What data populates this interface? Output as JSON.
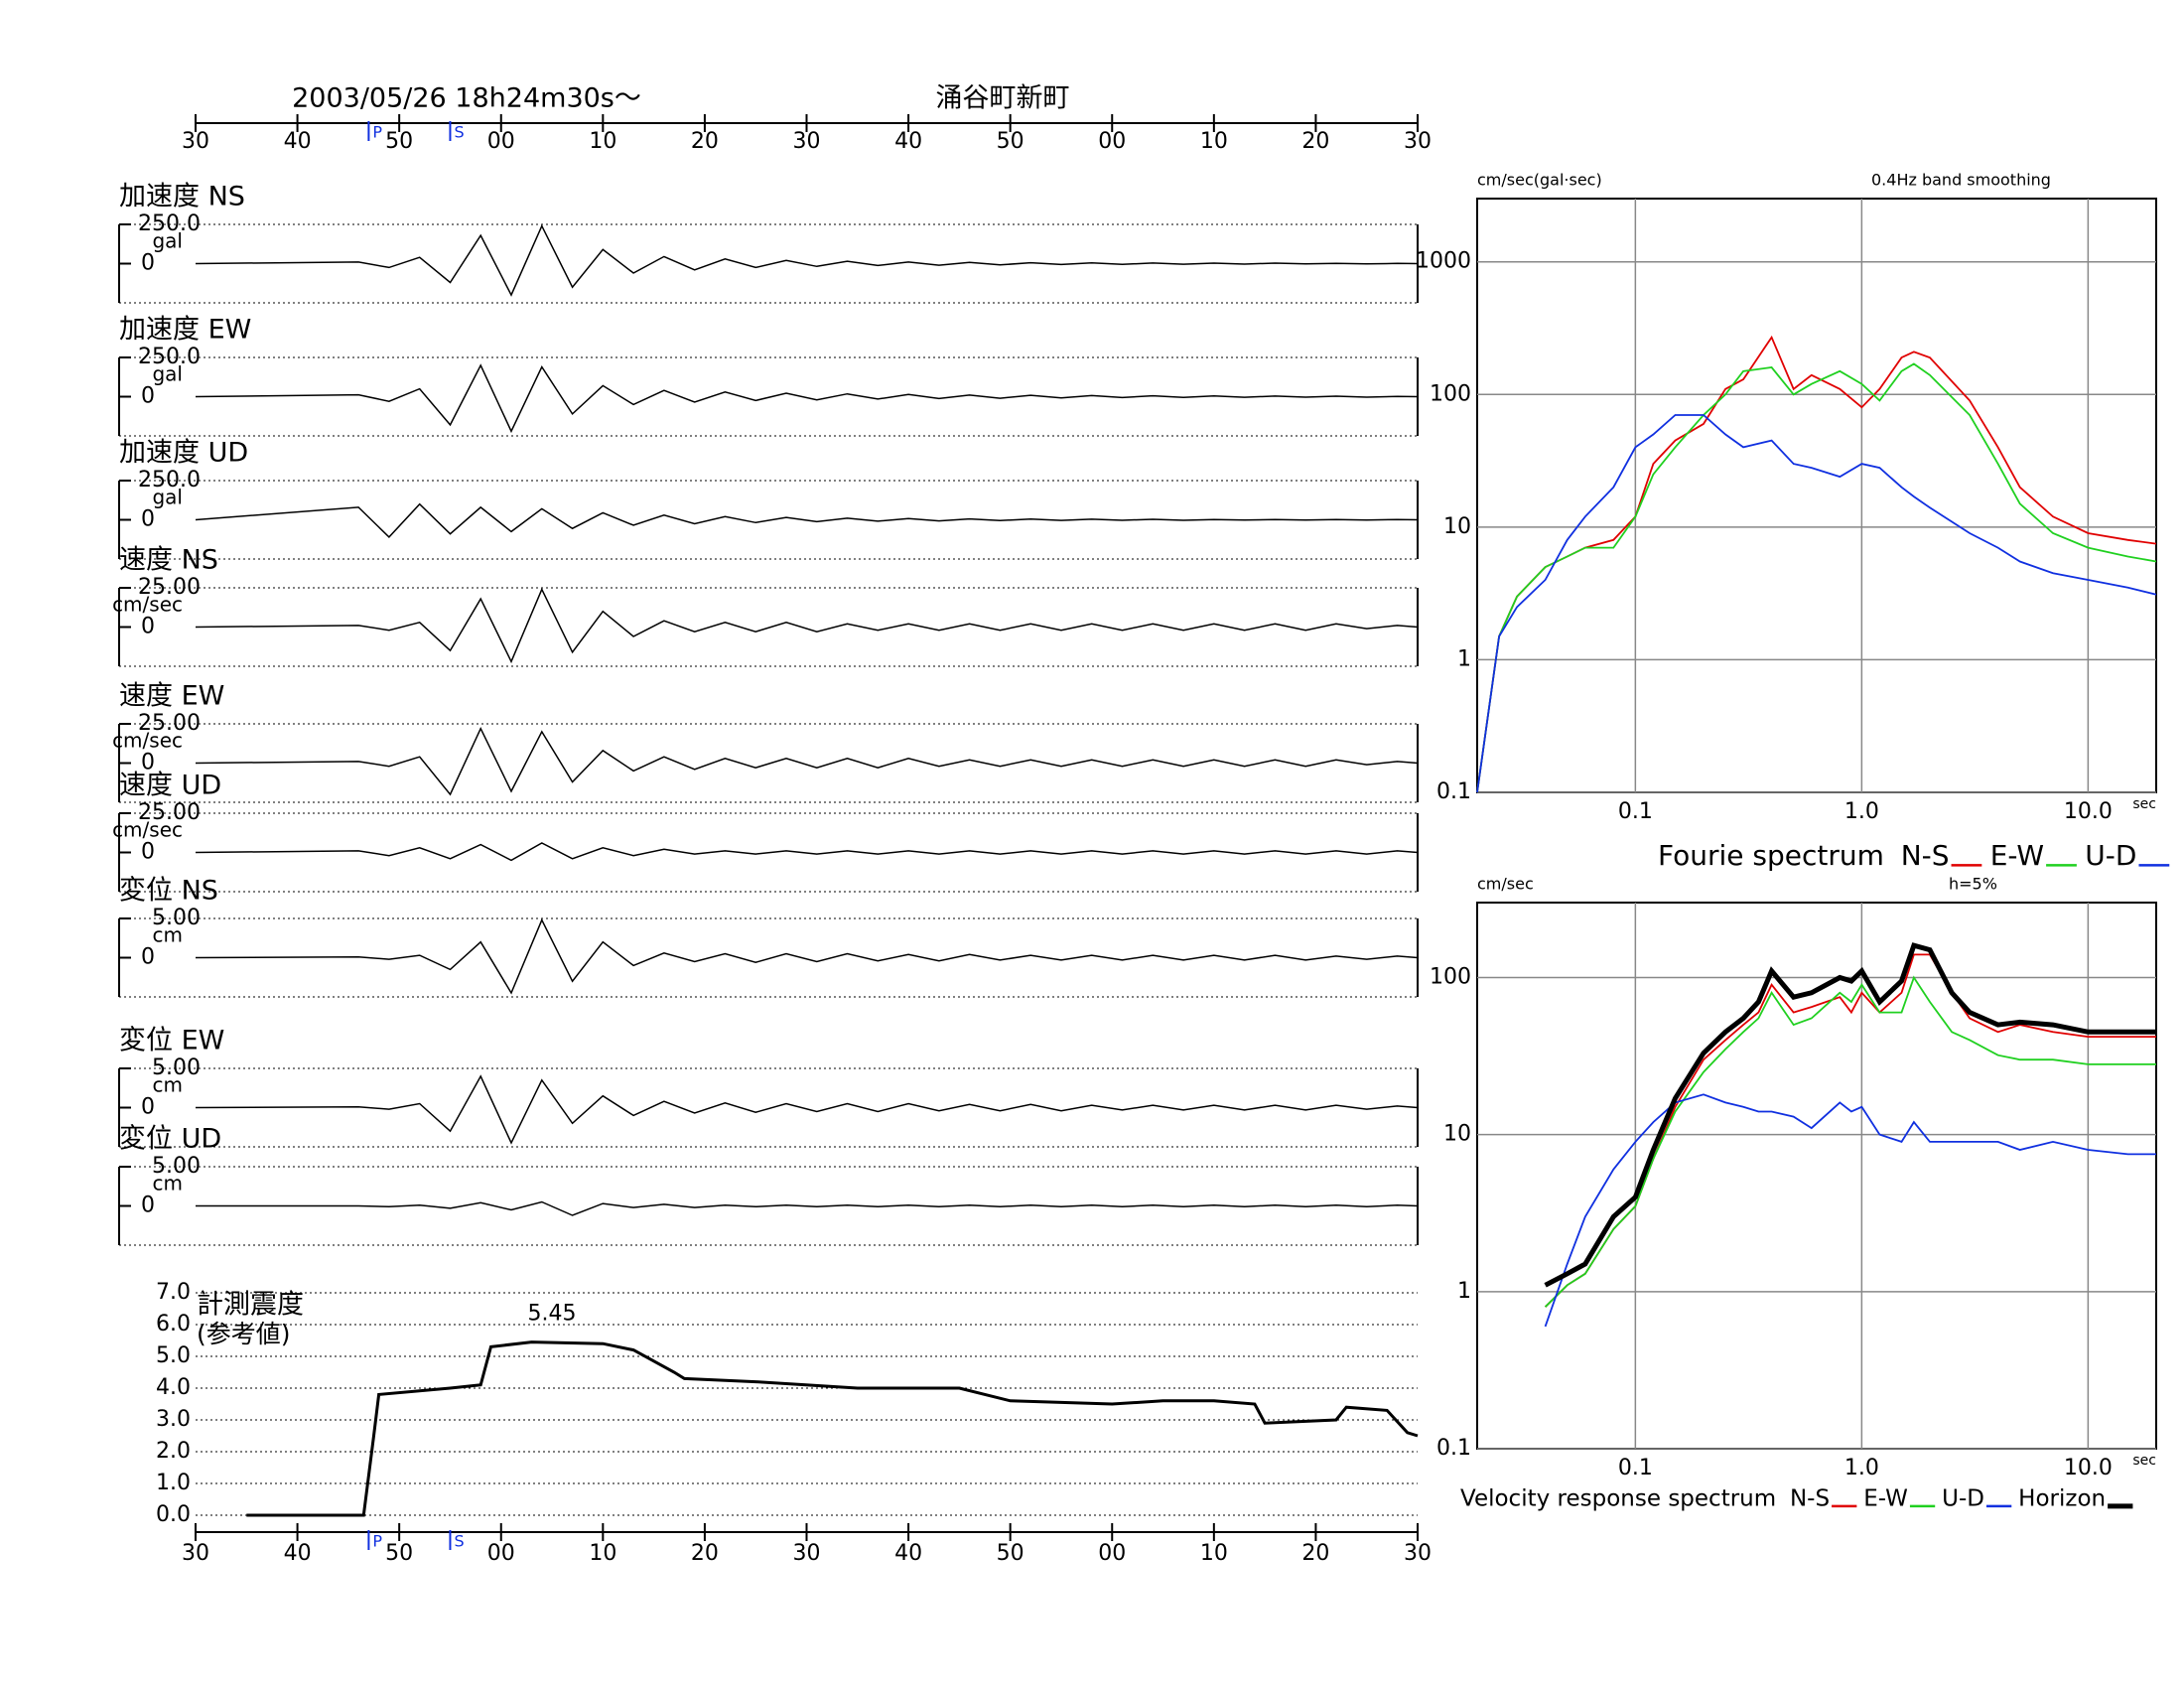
{
  "chart_data": [
    {
      "type": "waveform",
      "title": "2003/05/26  18h24m30s～",
      "subtitle": "涌谷町新町",
      "xlim": [
        0,
        120
      ],
      "xticks": [
        {
          "value": 0,
          "label": "30"
        },
        {
          "value": 10,
          "label": "40"
        },
        {
          "value": 20,
          "label": "50"
        },
        {
          "value": 30,
          "label": "00"
        },
        {
          "value": 40,
          "label": "10"
        },
        {
          "value": 50,
          "label": "20"
        },
        {
          "value": 60,
          "label": "30"
        },
        {
          "value": 70,
          "label": "40"
        },
        {
          "value": 80,
          "label": "50"
        },
        {
          "value": 90,
          "label": "00"
        },
        {
          "value": 100,
          "label": "10"
        },
        {
          "value": 110,
          "label": "20"
        },
        {
          "value": 120,
          "label": "30"
        }
      ],
      "markers": [
        {
          "label": "P",
          "x": 17
        },
        {
          "label": "S",
          "x": 25
        }
      ],
      "x": [
        0,
        16,
        19,
        22,
        25,
        28,
        31,
        34,
        37,
        40,
        43,
        46,
        49,
        52,
        55,
        58,
        61,
        64,
        67,
        70,
        73,
        76,
        79,
        82,
        85,
        88,
        91,
        94,
        97,
        100,
        103,
        106,
        109,
        112,
        115,
        118,
        120
      ],
      "series": [
        {
          "name": "加速度 NS",
          "unit": "gal",
          "color": "#000000",
          "ylim": [
            -250,
            250
          ],
          "yticks": [
            {
              "value": 250,
              "label": "250.0"
            },
            0
          ],
          "values": [
            0,
            10,
            -25,
            40,
            -120,
            180,
            -200,
            240,
            -150,
            90,
            -60,
            45,
            -40,
            30,
            -25,
            20,
            -18,
            15,
            -12,
            10,
            -10,
            8,
            -8,
            6,
            -6,
            5,
            -5,
            4,
            -4,
            3,
            -3,
            3,
            -2,
            2,
            -2,
            1,
            0
          ]
        },
        {
          "name": "加速度 EW",
          "unit": "gal",
          "color": "#000000",
          "ylim": [
            -250,
            250
          ],
          "yticks": [
            {
              "value": 250,
              "label": "250.0"
            },
            0
          ],
          "values": [
            0,
            12,
            -30,
            50,
            -180,
            200,
            -220,
            190,
            -110,
            70,
            -50,
            40,
            -35,
            30,
            -25,
            22,
            -20,
            18,
            -15,
            14,
            -12,
            10,
            -10,
            9,
            -8,
            7,
            -6,
            6,
            -5,
            5,
            -4,
            4,
            -3,
            3,
            -3,
            2,
            0
          ]
        },
        {
          "name": "加速度 UD",
          "unit": "gal",
          "color": "#000000",
          "ylim": [
            -250,
            250
          ],
          "yticks": [
            {
              "value": 250,
              "label": "250.0"
            },
            0
          ],
          "values": [
            0,
            80,
            -110,
            100,
            -90,
            80,
            -75,
            70,
            -55,
            45,
            -35,
            30,
            -25,
            20,
            -18,
            15,
            -12,
            10,
            -9,
            8,
            -7,
            6,
            -5,
            5,
            -4,
            4,
            -3,
            3,
            -3,
            2,
            -2,
            2,
            -1,
            1,
            -1,
            1,
            0
          ]
        },
        {
          "name": "速度 NS",
          "unit": "cm/sec",
          "color": "#000000",
          "ylim": [
            -25,
            25
          ],
          "yticks": [
            {
              "value": 25,
              "label": "25.00"
            },
            0
          ],
          "values": [
            0,
            1,
            -2,
            3,
            -15,
            18,
            -22,
            24,
            -16,
            10,
            -6,
            4,
            -3,
            3,
            -3,
            3,
            -3,
            2,
            -2,
            2,
            -2,
            2,
            -2,
            2,
            -2,
            2,
            -2,
            2,
            -2,
            2,
            -2,
            2,
            -2,
            2,
            -1,
            1,
            0
          ]
        },
        {
          "name": "速度 EW",
          "unit": "cm/sec",
          "color": "#000000",
          "ylim": [
            -25,
            25
          ],
          "yticks": [
            {
              "value": 25,
              "label": "25.00"
            },
            0
          ],
          "values": [
            0,
            1,
            -2,
            4,
            -20,
            22,
            -18,
            20,
            -12,
            8,
            -5,
            4,
            -4,
            3,
            -3,
            3,
            -3,
            3,
            -3,
            3,
            -2,
            2,
            -2,
            2,
            -2,
            2,
            -2,
            2,
            -2,
            2,
            -2,
            2,
            -2,
            2,
            -1,
            1,
            0
          ]
        },
        {
          "name": "速度 UD",
          "unit": "cm/sec",
          "color": "#000000",
          "ylim": [
            -25,
            25
          ],
          "yticks": [
            {
              "value": 25,
              "label": "25.00"
            },
            0
          ],
          "values": [
            0,
            1,
            -2,
            3,
            -4,
            5,
            -5,
            6,
            -4,
            3,
            -2,
            2,
            -1,
            1,
            -1,
            1,
            -1,
            1,
            -1,
            1,
            -1,
            1,
            -1,
            1,
            -1,
            1,
            -1,
            1,
            -1,
            1,
            -1,
            1,
            -1,
            1,
            -1,
            1,
            0
          ]
        },
        {
          "name": "変位 NS",
          "unit": "cm",
          "color": "#000000",
          "ylim": [
            -5,
            5
          ],
          "yticks": [
            {
              "value": 5,
              "label": "5.00"
            },
            0
          ],
          "values": [
            0,
            0.1,
            -0.2,
            0.3,
            -1.5,
            2,
            -4.5,
            4.8,
            -3,
            2,
            -1,
            0.6,
            -0.5,
            0.5,
            -0.6,
            0.5,
            -0.5,
            0.5,
            -0.4,
            0.4,
            -0.4,
            0.4,
            -0.3,
            0.3,
            -0.3,
            0.3,
            -0.3,
            0.3,
            -0.3,
            0.3,
            -0.3,
            0.3,
            -0.3,
            0.2,
            -0.2,
            0.2,
            0
          ]
        },
        {
          "name": "変位 EW",
          "unit": "cm",
          "color": "#000000",
          "ylim": [
            -5,
            5
          ],
          "yticks": [
            {
              "value": 5,
              "label": "5.00"
            },
            0
          ],
          "values": [
            0,
            0.1,
            -0.2,
            0.5,
            -3,
            4,
            -4.5,
            3.5,
            -2,
            1.5,
            -1,
            0.8,
            -0.7,
            0.6,
            -0.6,
            0.5,
            -0.5,
            0.5,
            -0.5,
            0.5,
            -0.4,
            0.4,
            -0.4,
            0.4,
            -0.4,
            0.3,
            -0.3,
            0.3,
            -0.3,
            0.3,
            -0.3,
            0.3,
            -0.3,
            0.3,
            -0.2,
            0.2,
            0
          ]
        },
        {
          "name": "変位 UD",
          "unit": "cm",
          "color": "#000000",
          "ylim": [
            -5,
            5
          ],
          "yticks": [
            {
              "value": 5,
              "label": "5.00"
            },
            0
          ],
          "values": [
            0,
            0,
            -0.1,
            0.1,
            -0.3,
            0.4,
            -0.5,
            0.5,
            -1.2,
            0.3,
            -0.2,
            0.2,
            -0.2,
            0.1,
            -0.1,
            0.1,
            -0.1,
            0.1,
            -0.1,
            0.1,
            -0.1,
            0.1,
            -0.1,
            0.1,
            -0.1,
            0.1,
            -0.1,
            0.1,
            -0.1,
            0.1,
            -0.1,
            0.1,
            -0.1,
            0.1,
            -0.1,
            0.1,
            0
          ]
        }
      ]
    },
    {
      "type": "line",
      "title": "計測震度",
      "subtitle": "(参考値)",
      "xlim": [
        0,
        120
      ],
      "xticks": [
        {
          "value": 0,
          "label": "30"
        },
        {
          "value": 10,
          "label": "40"
        },
        {
          "value": 20,
          "label": "50"
        },
        {
          "value": 30,
          "label": "00"
        },
        {
          "value": 40,
          "label": "10"
        },
        {
          "value": 50,
          "label": "20"
        },
        {
          "value": 60,
          "label": "30"
        },
        {
          "value": 70,
          "label": "40"
        },
        {
          "value": 80,
          "label": "50"
        },
        {
          "value": 90,
          "label": "00"
        },
        {
          "value": 100,
          "label": "10"
        },
        {
          "value": 110,
          "label": "20"
        },
        {
          "value": 120,
          "label": "30"
        }
      ],
      "markers": [
        {
          "label": "P",
          "x": 17
        },
        {
          "label": "S",
          "x": 25
        }
      ],
      "ylim": [
        0,
        7
      ],
      "yticks": [
        {
          "value": 0,
          "label": "0.0"
        },
        {
          "value": 1,
          "label": "1.0"
        },
        {
          "value": 2,
          "label": "2.0"
        },
        {
          "value": 3,
          "label": "3.0"
        },
        {
          "value": 4,
          "label": "4.0"
        },
        {
          "value": 5,
          "label": "5.0"
        },
        {
          "value": 6,
          "label": "6.0"
        },
        {
          "value": 7,
          "label": "7.0"
        }
      ],
      "grid": true,
      "x": [
        5,
        16.5,
        17.5,
        18,
        25,
        28,
        29,
        33,
        40,
        43,
        47,
        48,
        55,
        65,
        75,
        80,
        90,
        95,
        100,
        104,
        105,
        112,
        113,
        117,
        119,
        120
      ],
      "series": [
        {
          "color": "#000000",
          "values": [
            0,
            0,
            2.5,
            3.8,
            4.0,
            4.1,
            5.3,
            5.45,
            5.4,
            5.2,
            4.5,
            4.3,
            4.2,
            4.0,
            4.0,
            3.6,
            3.5,
            3.6,
            3.6,
            3.5,
            2.9,
            3.0,
            3.4,
            3.3,
            2.6,
            2.5
          ]
        }
      ],
      "annotations": [
        {
          "x": 35,
          "value": 5.45
        }
      ]
    },
    {
      "type": "line",
      "log_x": true,
      "log_y": true,
      "grid": true,
      "unit_label": "cm/sec(gal·sec)",
      "note": "0.4Hz band smoothing",
      "x_unit": "sec",
      "legend_title": "Fourie spectrum",
      "xlim": [
        0.02,
        20
      ],
      "xticks": [
        0.1,
        {
          "value": 1,
          "label": "1.0"
        },
        {
          "value": 10,
          "label": "10.0"
        }
      ],
      "ylim": [
        0.1,
        3000
      ],
      "yticks": [
        0.1,
        1,
        10,
        100,
        1000
      ],
      "x": [
        0.02,
        0.025,
        0.03,
        0.04,
        0.05,
        0.06,
        0.08,
        0.1,
        0.12,
        0.15,
        0.2,
        0.25,
        0.3,
        0.4,
        0.5,
        0.6,
        0.8,
        1.0,
        1.2,
        1.5,
        1.7,
        2,
        3,
        4,
        5,
        7,
        10,
        15,
        20
      ],
      "series": [
        {
          "name": "N-S",
          "color": "#e00000",
          "values": [
            0.1,
            1.5,
            3,
            5,
            6,
            7,
            8,
            12,
            30,
            45,
            60,
            110,
            130,
            270,
            110,
            140,
            110,
            80,
            110,
            190,
            210,
            190,
            90,
            40,
            20,
            12,
            9,
            8,
            7.5
          ]
        },
        {
          "name": "E-W",
          "color": "#20d020",
          "values": [
            0.1,
            1.5,
            3,
            5,
            6,
            7,
            7,
            12,
            25,
            40,
            70,
            100,
            150,
            160,
            100,
            120,
            150,
            120,
            90,
            150,
            170,
            140,
            70,
            30,
            15,
            9,
            7,
            6,
            5.5
          ]
        },
        {
          "name": "U-D",
          "color": "#1030e0",
          "values": [
            0.1,
            1.5,
            2.5,
            4,
            8,
            12,
            20,
            40,
            50,
            70,
            70,
            50,
            40,
            45,
            30,
            28,
            24,
            30,
            28,
            20,
            17,
            14,
            9,
            7,
            5.5,
            4.5,
            4,
            3.5,
            3.1
          ]
        }
      ]
    },
    {
      "type": "line",
      "log_x": true,
      "log_y": true,
      "grid": true,
      "unit_label": "cm/sec",
      "note": "h=5%",
      "x_unit": "sec",
      "legend_title": "Velocity response spectrum",
      "xlim": [
        0.02,
        20
      ],
      "xticks": [
        0.1,
        {
          "value": 1,
          "label": "1.0"
        },
        {
          "value": 10,
          "label": "10.0"
        }
      ],
      "ylim": [
        0.1,
        300
      ],
      "yticks": [
        0.1,
        1,
        10,
        100
      ],
      "x": [
        0.04,
        0.05,
        0.06,
        0.08,
        0.1,
        0.12,
        0.15,
        0.2,
        0.25,
        0.3,
        0.35,
        0.4,
        0.5,
        0.6,
        0.8,
        0.9,
        1.0,
        1.2,
        1.5,
        1.7,
        2,
        2.5,
        3,
        4,
        5,
        7,
        10,
        15,
        20
      ],
      "series": [
        {
          "name": "N-S",
          "color": "#e00000",
          "values": [
            0.8,
            1.1,
            1.3,
            2.5,
            3.5,
            7,
            15,
            30,
            40,
            50,
            60,
            90,
            60,
            65,
            75,
            60,
            80,
            60,
            80,
            140,
            140,
            80,
            55,
            45,
            50,
            45,
            42,
            42,
            42
          ]
        },
        {
          "name": "E-W",
          "color": "#20d020",
          "values": [
            0.8,
            1.1,
            1.3,
            2.5,
            3.5,
            7,
            14,
            25,
            35,
            45,
            55,
            80,
            50,
            55,
            80,
            70,
            90,
            60,
            60,
            100,
            70,
            45,
            40,
            32,
            30,
            30,
            28,
            28,
            28
          ]
        },
        {
          "name": "U-D",
          "color": "#1030e0",
          "values": [
            0.6,
            1.5,
            3,
            6,
            9,
            12,
            16,
            18,
            16,
            15,
            14,
            14,
            13,
            11,
            16,
            14,
            15,
            10,
            9,
            12,
            9,
            9,
            9,
            9,
            8,
            9,
            8,
            7.5,
            7.5
          ]
        },
        {
          "name": "Horizon",
          "color": "#000000",
          "values": [
            1.1,
            1.3,
            1.5,
            3,
            4,
            8,
            17,
            33,
            45,
            55,
            70,
            110,
            75,
            80,
            100,
            95,
            110,
            70,
            95,
            160,
            150,
            80,
            60,
            50,
            52,
            50,
            45,
            45,
            45
          ]
        }
      ]
    }
  ]
}
